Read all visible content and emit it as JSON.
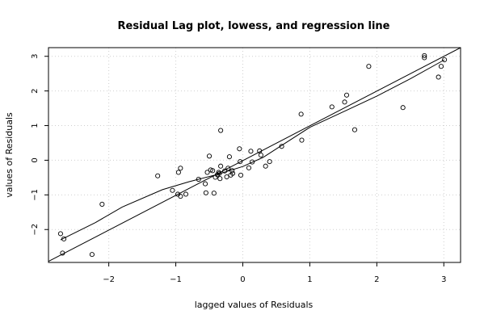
{
  "chart_data": {
    "type": "scatter",
    "title": "Residual Lag plot, lowess, and regression line",
    "xlabel": "lagged values of Residuals",
    "ylabel": "values of Residuals",
    "xlim": [
      -2.9,
      3.25
    ],
    "ylim": [
      -2.95,
      3.25
    ],
    "x_ticks": [
      -2,
      -1,
      0,
      1,
      2,
      3
    ],
    "y_ticks": [
      -2,
      -1,
      0,
      1,
      2,
      3
    ],
    "grid": true,
    "points": [
      [
        -2.72,
        -2.12
      ],
      [
        -2.67,
        -2.27
      ],
      [
        -2.69,
        -2.68
      ],
      [
        -2.25,
        -2.72
      ],
      [
        -2.1,
        -1.27
      ],
      [
        -1.27,
        -0.45
      ],
      [
        -1.05,
        -0.87
      ],
      [
        -0.97,
        -0.98
      ],
      [
        -0.96,
        -0.35
      ],
      [
        -0.93,
        -1.04
      ],
      [
        -0.93,
        -0.23
      ],
      [
        -0.85,
        -0.98
      ],
      [
        -0.66,
        -0.55
      ],
      [
        -0.56,
        -0.68
      ],
      [
        -0.55,
        -0.94
      ],
      [
        -0.53,
        -0.35
      ],
      [
        -0.5,
        0.12
      ],
      [
        -0.48,
        -0.28
      ],
      [
        -0.45,
        -0.3
      ],
      [
        -0.43,
        -0.95
      ],
      [
        -0.41,
        -0.49
      ],
      [
        -0.38,
        -0.42
      ],
      [
        -0.36,
        -0.35
      ],
      [
        -0.35,
        -0.38
      ],
      [
        -0.34,
        -0.53
      ],
      [
        -0.33,
        -0.17
      ],
      [
        -0.33,
        0.86
      ],
      [
        -0.27,
        -0.31
      ],
      [
        -0.24,
        -0.48
      ],
      [
        -0.22,
        -0.23
      ],
      [
        -0.2,
        0.1
      ],
      [
        -0.18,
        -0.43
      ],
      [
        -0.16,
        -0.3
      ],
      [
        -0.15,
        -0.38
      ],
      [
        -0.05,
        0.33
      ],
      [
        -0.04,
        -0.04
      ],
      [
        -0.03,
        -0.43
      ],
      [
        0.09,
        -0.22
      ],
      [
        0.12,
        0.26
      ],
      [
        0.14,
        -0.05
      ],
      [
        0.25,
        0.27
      ],
      [
        0.27,
        0.15
      ],
      [
        0.34,
        -0.17
      ],
      [
        0.4,
        -0.04
      ],
      [
        0.58,
        0.4
      ],
      [
        0.87,
        1.33
      ],
      [
        0.88,
        0.58
      ],
      [
        1.33,
        1.54
      ],
      [
        1.52,
        1.68
      ],
      [
        1.55,
        1.88
      ],
      [
        1.67,
        0.88
      ],
      [
        1.88,
        2.71
      ],
      [
        2.39,
        1.52
      ],
      [
        2.71,
        2.96
      ],
      [
        2.71,
        3.02
      ],
      [
        2.92,
        2.4
      ],
      [
        2.96,
        2.71
      ],
      [
        3.01,
        2.9
      ]
    ],
    "regression_line": {
      "x": [
        -2.9,
        3.25
      ],
      "y": [
        -2.92,
        3.25
      ]
    },
    "lowess_line": {
      "x": [
        -2.72,
        -2.2,
        -1.8,
        -1.2,
        -0.8,
        -0.4,
        0.0,
        0.3,
        0.6,
        1.0,
        1.5,
        2.0,
        2.5,
        3.01
      ],
      "y": [
        -2.3,
        -1.8,
        -1.35,
        -0.85,
        -0.62,
        -0.42,
        -0.18,
        0.08,
        0.45,
        0.95,
        1.4,
        1.85,
        2.35,
        2.9
      ]
    }
  }
}
